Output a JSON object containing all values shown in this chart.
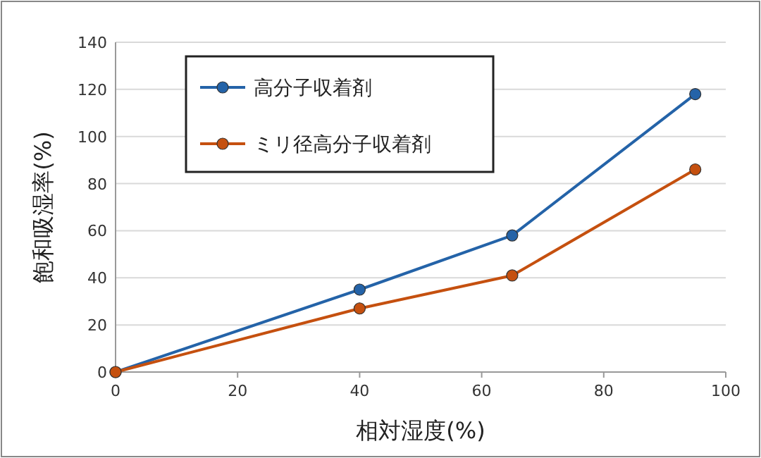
{
  "chart_data": {
    "type": "line",
    "xlabel": "相対湿度(%)",
    "ylabel": "飽和吸湿率(%)",
    "x": [
      0,
      40,
      65,
      95
    ],
    "series": [
      {
        "name": "高分子収着剤",
        "color": "#2463a8",
        "values": [
          0,
          35,
          58,
          118
        ]
      },
      {
        "name": "ミリ径高分子収着剤",
        "color": "#c5500f",
        "values": [
          0,
          27,
          41,
          86
        ]
      }
    ],
    "xlim": [
      0,
      100
    ],
    "ylim": [
      0,
      140
    ],
    "xticks": [
      0,
      20,
      40,
      60,
      80,
      100
    ],
    "yticks": [
      0,
      20,
      40,
      60,
      80,
      100,
      120,
      140
    ],
    "grid": "y",
    "legend": "top left",
    "marker": "circle"
  }
}
